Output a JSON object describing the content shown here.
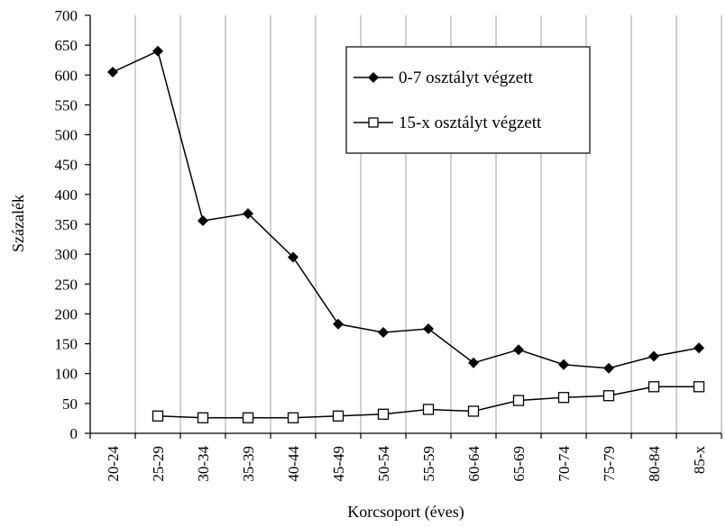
{
  "chart_data": {
    "type": "line",
    "title": "",
    "xlabel": "Korcsoport (éves)",
    "ylabel": "Százalék",
    "ylim": [
      0,
      700
    ],
    "yticks": [
      0,
      50,
      100,
      150,
      200,
      250,
      300,
      350,
      400,
      450,
      500,
      550,
      600,
      650,
      700
    ],
    "grid": "vertical",
    "legend_position": "top-right",
    "categories": [
      "20-24",
      "25-29",
      "30-34",
      "35-39",
      "40-44",
      "45-49",
      "50-54",
      "55-59",
      "60-64",
      "65-69",
      "70-74",
      "75-79",
      "80-84",
      "85-x"
    ],
    "series": [
      {
        "name": "0-7 osztályt végzett",
        "marker": "filled-diamond",
        "color": "#000000",
        "values": [
          605,
          640,
          356,
          368,
          295,
          183,
          169,
          175,
          118,
          140,
          115,
          109,
          129,
          143
        ]
      },
      {
        "name": "15-x osztályt végzett",
        "marker": "open-square",
        "color": "#000000",
        "values": [
          null,
          29,
          26,
          26,
          26,
          29,
          32,
          40,
          37,
          55,
          60,
          63,
          78,
          78
        ]
      }
    ]
  }
}
